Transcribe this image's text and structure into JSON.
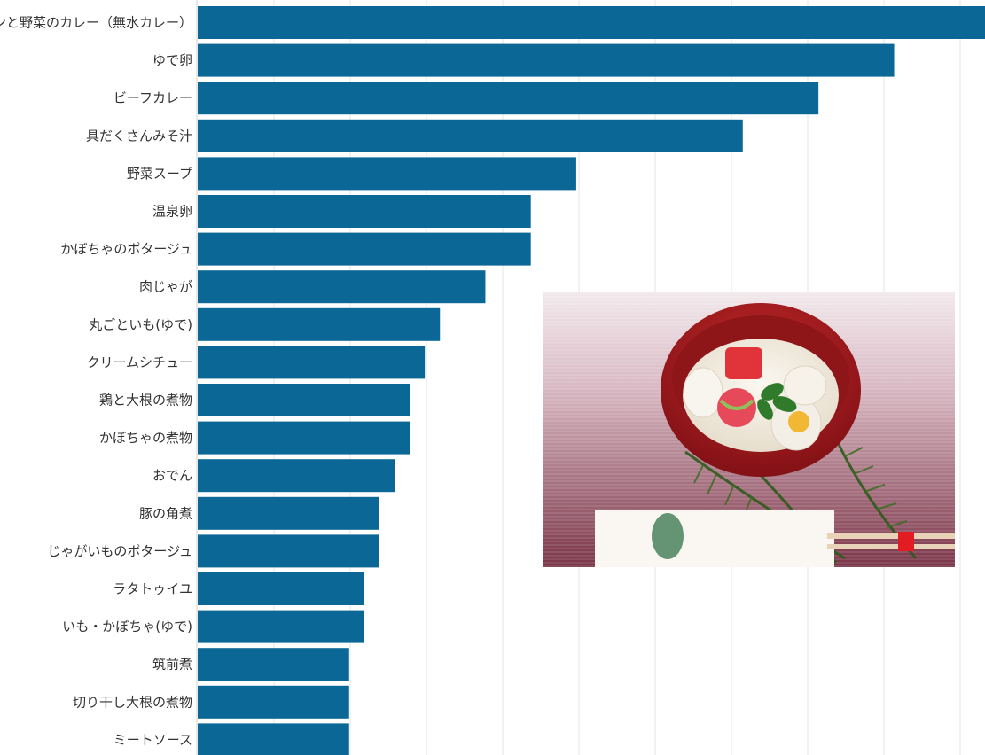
{
  "chart_data": {
    "type": "bar",
    "orientation": "horizontal",
    "categories": [
      "チキンと野菜のカレー（無水カレー）",
      "ゆで卵",
      "ビーフカレー",
      "具だくさんみそ汁",
      "野菜スープ",
      "温泉卵",
      "かぼちゃのポタージュ",
      "肉じゃが",
      "丸ごといも(ゆで)",
      "クリームシチュー",
      "鶏と大根の煮物",
      "かぼちゃの煮物",
      "おでん",
      "豚の角煮",
      "じゃがいものポタージュ",
      "ラタトゥイユ",
      "いも・かぼちゃ(ゆで)",
      "筑前煮",
      "切り干し大根の煮物",
      "ミートソース"
    ],
    "values": [
      52,
      46,
      41,
      36,
      25,
      22,
      22,
      19,
      16,
      15,
      14,
      14,
      13,
      12,
      12,
      11,
      11,
      10,
      10,
      10
    ],
    "xlim": [
      0,
      52
    ],
    "grid": true,
    "bar_color": "#0a6796"
  },
  "photo": {
    "subject": "ozoni soup with fern leaves and chopsticks",
    "colors": {
      "background_top": "#efe6ea",
      "background_bottom": "#7e3a4f",
      "bowl": "#a81c1c",
      "soup": "#f1ece2"
    }
  }
}
